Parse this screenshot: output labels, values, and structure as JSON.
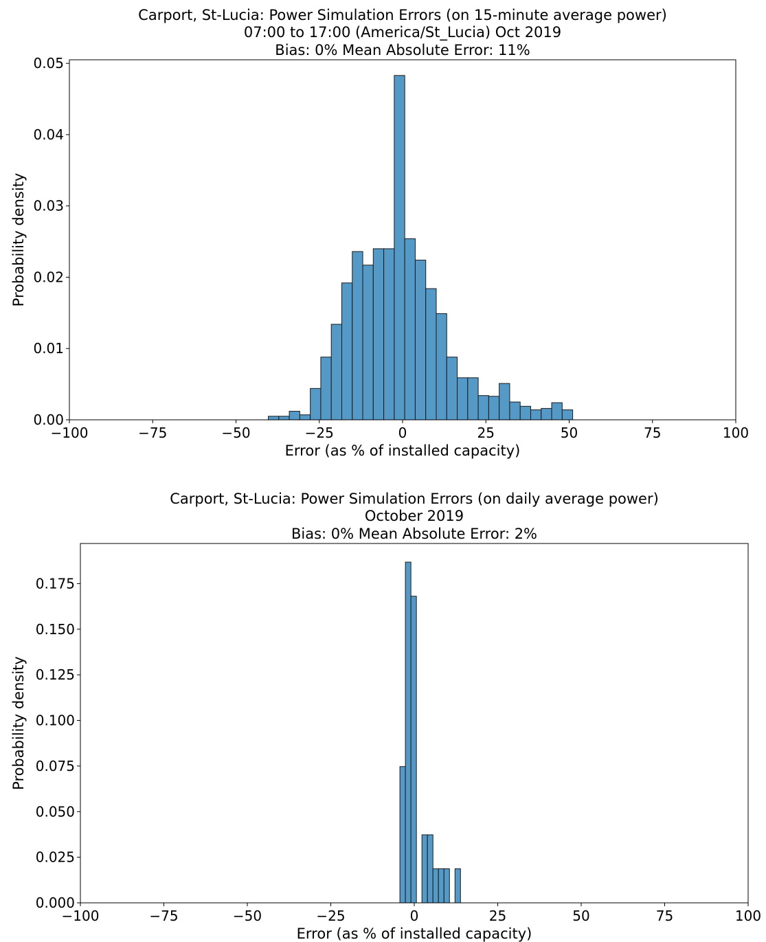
{
  "chart_data": [
    {
      "type": "bar",
      "title_lines": [
        "Carport, St-Lucia: Power Simulation Errors (on 15-minute average power)",
        "07:00 to 17:00 (America/St_Lucia) Oct 2019",
        "Bias: 0% Mean Absolute Error: 11%"
      ],
      "xlabel": "Error (as % of installed capacity)",
      "ylabel": "Probability density",
      "xlim": [
        -100,
        100
      ],
      "ylim": [
        0,
        0.0505
      ],
      "xticks": [
        -100,
        -75,
        -50,
        -25,
        0,
        25,
        50,
        75,
        100
      ],
      "xtick_labels": [
        "−100",
        "−75",
        "−50",
        "−25",
        "0",
        "25",
        "50",
        "75",
        "100"
      ],
      "yticks": [
        0,
        0.01,
        0.02,
        0.03,
        0.04,
        0.05
      ],
      "ytick_labels": [
        "0.00",
        "0.01",
        "0.02",
        "0.03",
        "0.04",
        "0.05"
      ],
      "bin_width": 3.15,
      "bin_start": -40.3,
      "values": [
        0.0005,
        0.0005,
        0.0012,
        0.0007,
        0.0044,
        0.0088,
        0.0134,
        0.0192,
        0.0236,
        0.0217,
        0.024,
        0.024,
        0.0483,
        0.0254,
        0.0224,
        0.0184,
        0.0149,
        0.0088,
        0.0059,
        0.0059,
        0.0034,
        0.0033,
        0.0051,
        0.0025,
        0.0019,
        0.0014,
        0.0016,
        0.0024,
        0.0014
      ],
      "grid": false,
      "bar_color": "#5599c7"
    },
    {
      "type": "bar",
      "title_lines": [
        "Carport, St-Lucia: Power Simulation Errors (on daily average power)",
        "October 2019",
        "Bias: 0% Mean Absolute Error: 2%"
      ],
      "xlabel": "Error (as % of installed capacity)",
      "ylabel": "Probability density",
      "xlim": [
        -100,
        100
      ],
      "ylim": [
        0,
        0.197
      ],
      "xticks": [
        -100,
        -75,
        -50,
        -25,
        0,
        25,
        50,
        75,
        100
      ],
      "xtick_labels": [
        "−100",
        "−75",
        "−50",
        "−25",
        "0",
        "25",
        "50",
        "75",
        "100"
      ],
      "yticks": [
        0,
        0.025,
        0.05,
        0.075,
        0.1,
        0.125,
        0.15,
        0.175
      ],
      "ytick_labels": [
        "0.000",
        "0.025",
        "0.050",
        "0.075",
        "0.100",
        "0.125",
        "0.150",
        "0.175"
      ],
      "bin_width": 1.65,
      "bin_start": -4.3,
      "values": [
        0.0747,
        0.1868,
        0.1681,
        0.0,
        0.0373,
        0.0373,
        0.0187,
        0.0187,
        0.0187,
        0.0,
        0.0187
      ],
      "grid": false,
      "bar_color": "#5599c7"
    }
  ]
}
